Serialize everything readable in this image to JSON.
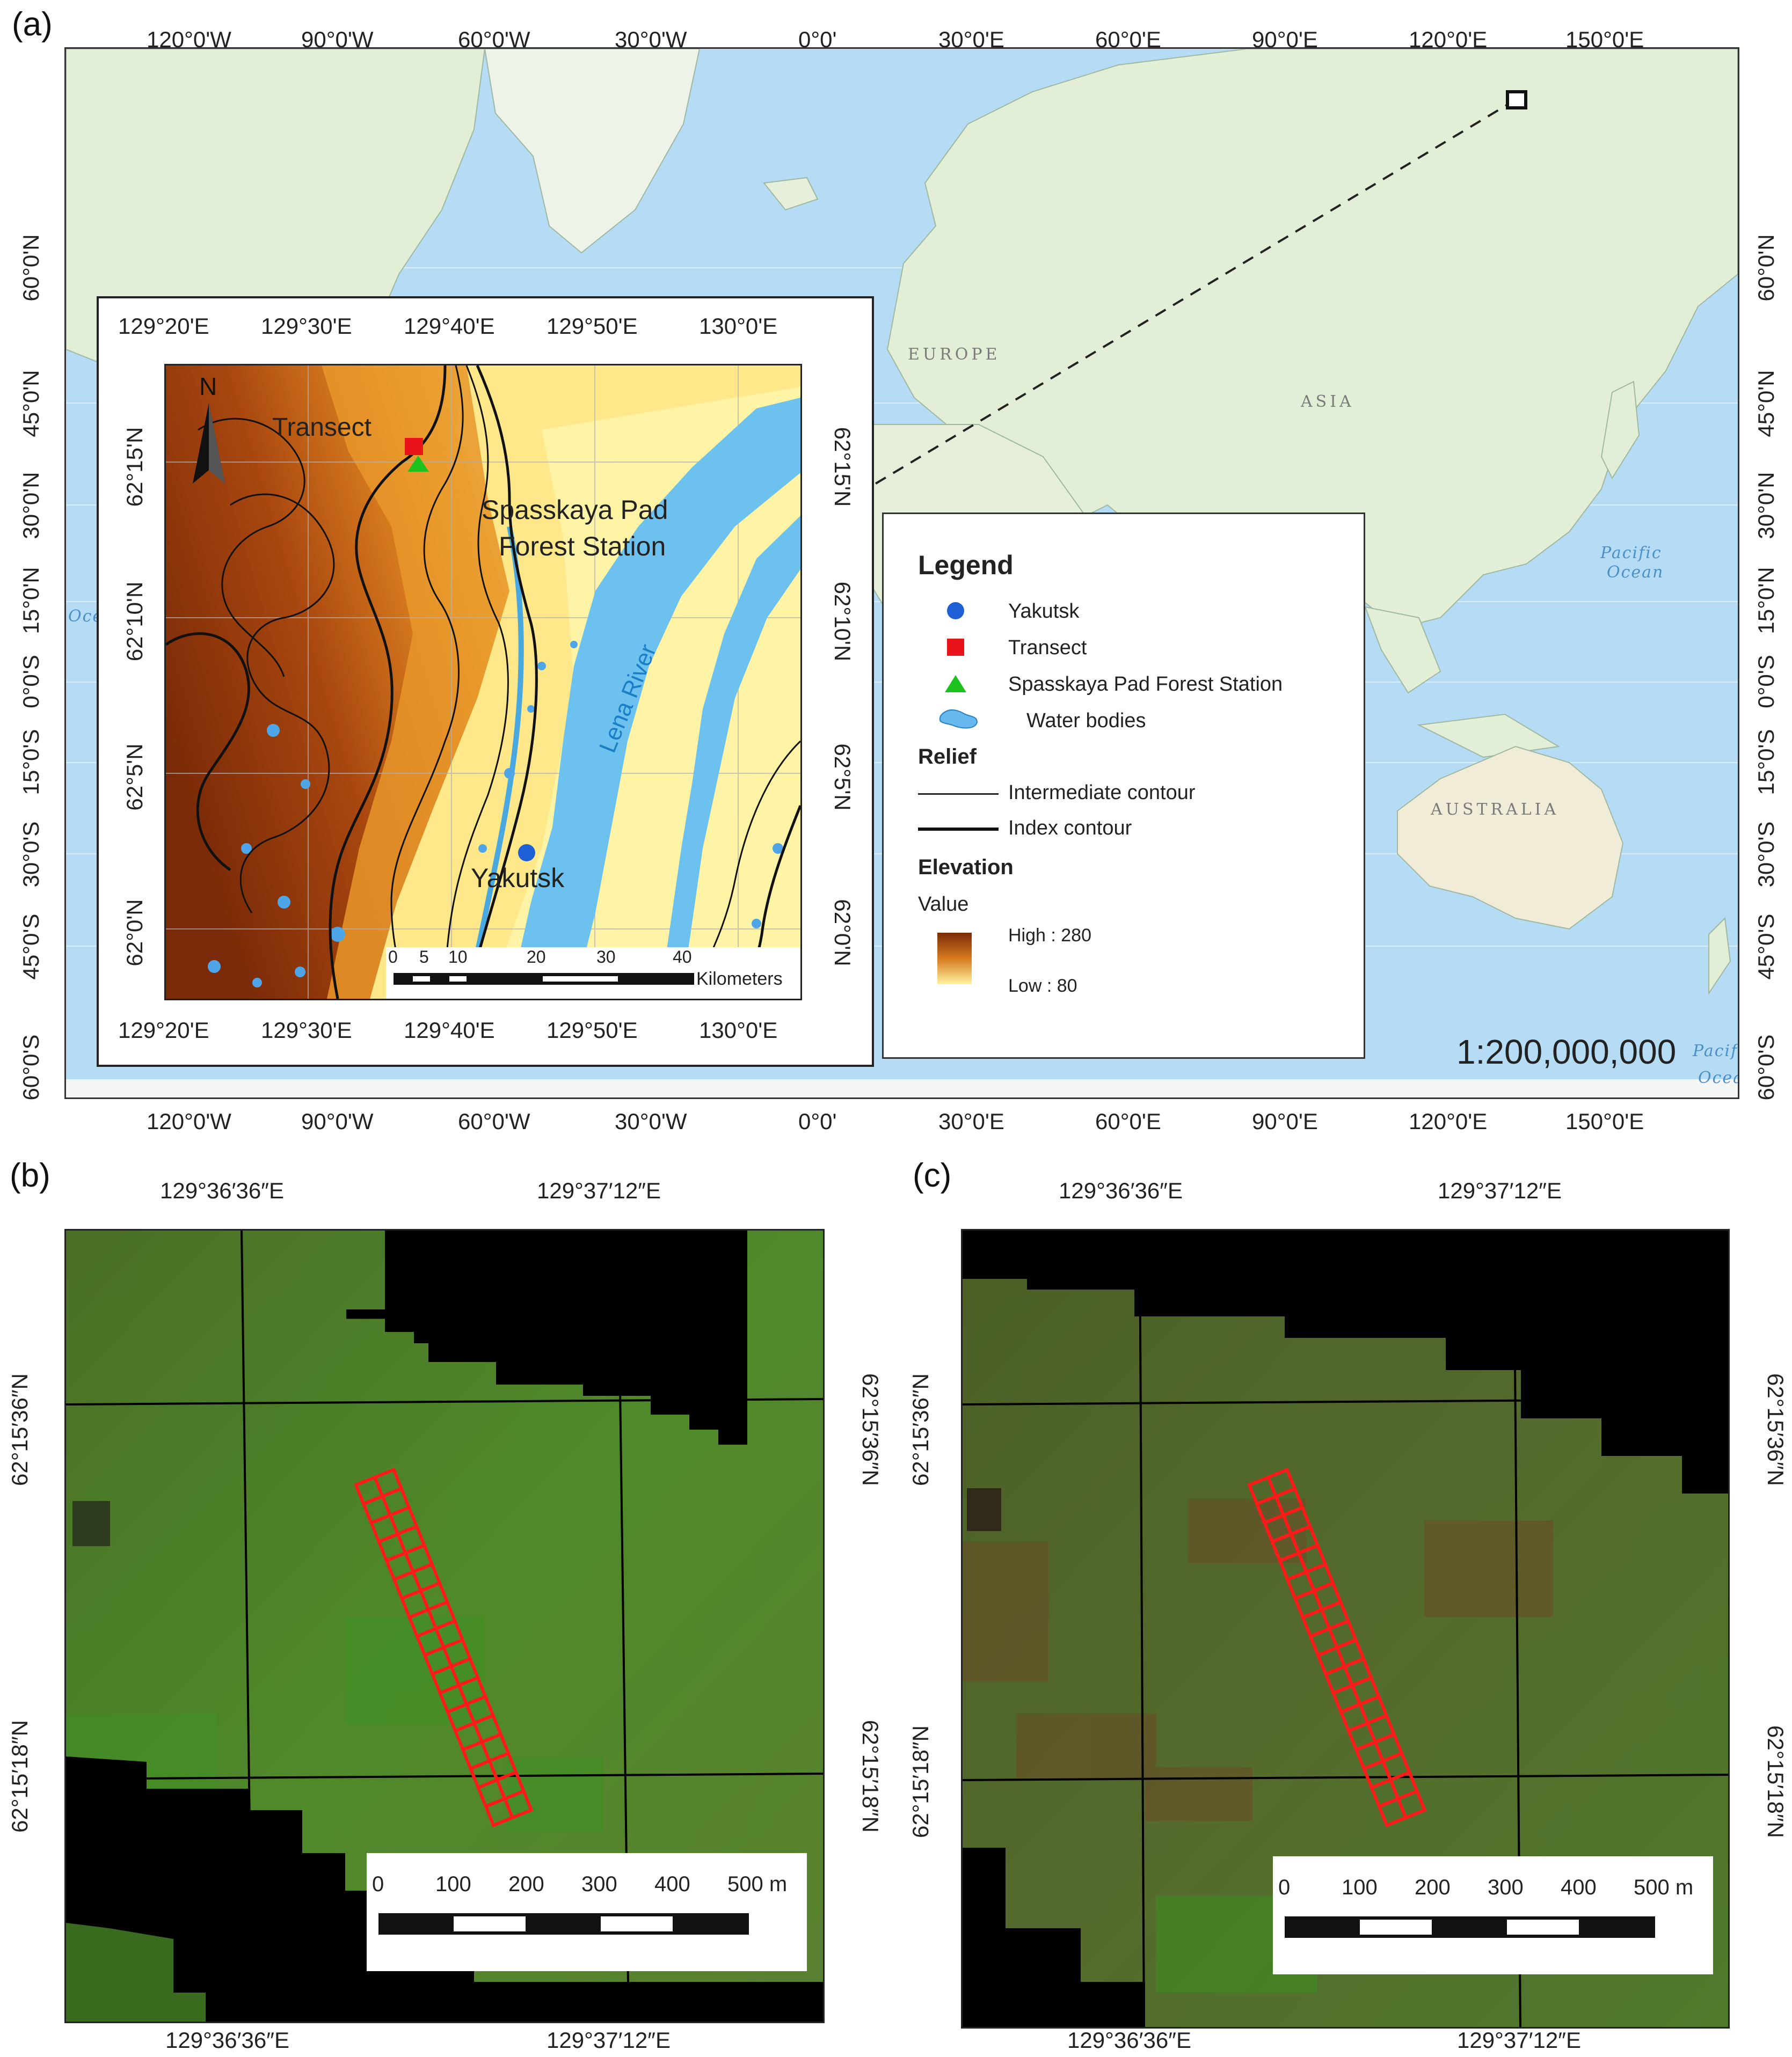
{
  "panels": {
    "a": {
      "label": "(a)",
      "lon_ticks": [
        "120°0'W",
        "90°0'W",
        "60°0'W",
        "30°0'W",
        "0°0'",
        "30°0'E",
        "60°0'E",
        "90°0'E",
        "120°0'E",
        "150°0'E"
      ],
      "lat_ticks_left": [
        "60°0'N",
        "45°0'N",
        "30°0'N",
        "15°0'N",
        "0°0'S",
        "15°0'S",
        "30°0'S",
        "45°0'S",
        "60°0'S"
      ],
      "lat_ticks_right": [
        "60°0'N",
        "45°0'N",
        "30°0'N",
        "15°0'N",
        "0°0'S",
        "15°0'S",
        "30°0'S",
        "45°0'S",
        "60°0'S"
      ],
      "place_labels": {
        "europe": "EUROPE",
        "asia": "ASIA",
        "australia": "AUSTRALIA",
        "pacific_1": "Pacific",
        "pacific_2": "Ocean",
        "ocean_left": "Oce",
        "ocean_br_1": "Pacific",
        "ocean_br_2": "Ocean"
      },
      "scale_text": "1:200,000,000",
      "inset": {
        "lon_ticks": [
          "129°20'E",
          "129°30'E",
          "129°40'E",
          "129°50'E",
          "130°0'E"
        ],
        "lat_ticks": [
          "62°15'N",
          "62°10'N",
          "62°5'N",
          "62°0'N"
        ],
        "north": "N",
        "labels": {
          "transect": "Transect",
          "station_1": "Spasskaya Pad",
          "station_2": "Forest Station",
          "yakutsk": "Yakutsk",
          "river": "Lena River"
        },
        "scalebar": {
          "ticks": [
            "0",
            "5",
            "10",
            "20",
            "30",
            "40"
          ],
          "unit": "Kilometers"
        }
      },
      "legend": {
        "title": "Legend",
        "items": [
          {
            "label": "Yakutsk",
            "symbol": "circle",
            "color": "#1f5fd6"
          },
          {
            "label": "Transect",
            "symbol": "square",
            "color": "#e8141a"
          },
          {
            "label": "Spasskaya Pad Forest Station",
            "symbol": "triangle",
            "color": "#1ec21e"
          },
          {
            "label": "Water bodies",
            "symbol": "water",
            "color": "#66b8ee"
          }
        ],
        "relief_head": "Relief",
        "relief_items": [
          "Intermediate contour",
          "Index contour"
        ],
        "elev_head": "Elevation",
        "value_label": "Value",
        "high": "High : 280",
        "low": "Low : 80"
      }
    },
    "b": {
      "label": "(b)",
      "lon_ticks": [
        "129°36′36″E",
        "129°37′12″E"
      ],
      "lat_ticks": [
        "62°15′36″N",
        "62°15′18″N"
      ],
      "scalebar": {
        "ticks": [
          "0",
          "100",
          "200",
          "300",
          "400",
          "500 m"
        ]
      }
    },
    "c": {
      "label": "(c)",
      "lon_ticks": [
        "129°36′36″E",
        "129°37′12″E"
      ],
      "lat_ticks": [
        "62°15′36″N",
        "62°15′18″N"
      ],
      "scalebar": {
        "ticks": [
          "0",
          "100",
          "200",
          "300",
          "400",
          "500 m"
        ]
      }
    }
  },
  "colors": {
    "ocean": "#b5dcf4",
    "land": "#e6efd9",
    "transect": "#ff1a1a",
    "elev_high": "#7a2a08",
    "elev_low": "#fff3a0"
  }
}
